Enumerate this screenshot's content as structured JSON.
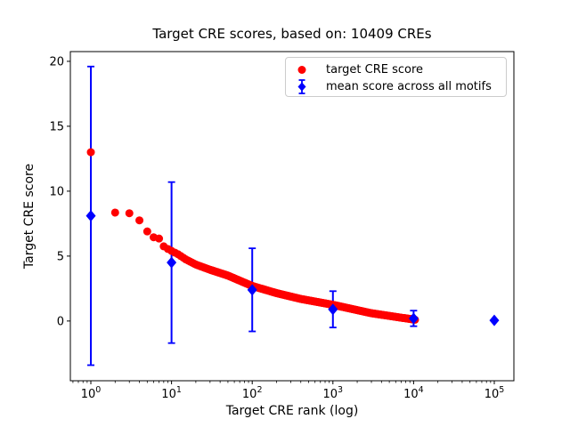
{
  "chart_data": {
    "type": "scatter",
    "title": "Target CRE scores, based on: 10409 CREs",
    "xlabel": "Target CRE rank (log)",
    "ylabel": "Target CRE score",
    "x_scale": "log",
    "x_tick_base": "10",
    "x_tick_exponents": [
      0,
      1,
      2,
      3,
      4,
      5
    ],
    "y_ticks": [
      0,
      5,
      10,
      15,
      20
    ],
    "xlim_log10": [
      -0.254,
      5.243
    ],
    "ylim": [
      -4.6,
      20.75
    ],
    "grid": false,
    "legend_position": "upper-right-inside",
    "legend": [
      "target CRE score",
      "mean score across all motifs"
    ],
    "colors": {
      "target": "#ff0000",
      "mean": "#0000ff",
      "axes": "#000000",
      "legend_border": "#cccccc"
    },
    "series": [
      {
        "name": "target CRE score",
        "marker": "circle",
        "color": "#ff0000",
        "n_points": 10409,
        "note": "10409 sorted scores, one dot per rank; anchor points [rank, score] read from plot, log-linear interpolation between anchors",
        "anchors": [
          [
            1,
            13.0
          ],
          [
            2,
            8.35
          ],
          [
            3,
            8.3
          ],
          [
            4,
            7.75
          ],
          [
            5,
            6.9
          ],
          [
            6,
            6.45
          ],
          [
            7,
            6.35
          ],
          [
            8,
            5.75
          ],
          [
            9,
            5.55
          ],
          [
            10,
            5.4
          ],
          [
            12,
            5.15
          ],
          [
            15,
            4.75
          ],
          [
            20,
            4.35
          ],
          [
            30,
            3.95
          ],
          [
            50,
            3.5
          ],
          [
            100,
            2.7
          ],
          [
            200,
            2.15
          ],
          [
            400,
            1.7
          ],
          [
            1000,
            1.25
          ],
          [
            3000,
            0.6
          ],
          [
            10409,
            0.1
          ]
        ]
      },
      {
        "name": "mean score across all motifs",
        "marker": "diamond",
        "color": "#0000ff",
        "x": [
          1,
          10,
          100,
          1000,
          10000,
          100000
        ],
        "y": [
          8.1,
          4.5,
          2.4,
          0.9,
          0.2,
          0.05
        ],
        "yerr": [
          11.5,
          6.2,
          3.2,
          1.4,
          0.6,
          0.1
        ]
      }
    ]
  }
}
